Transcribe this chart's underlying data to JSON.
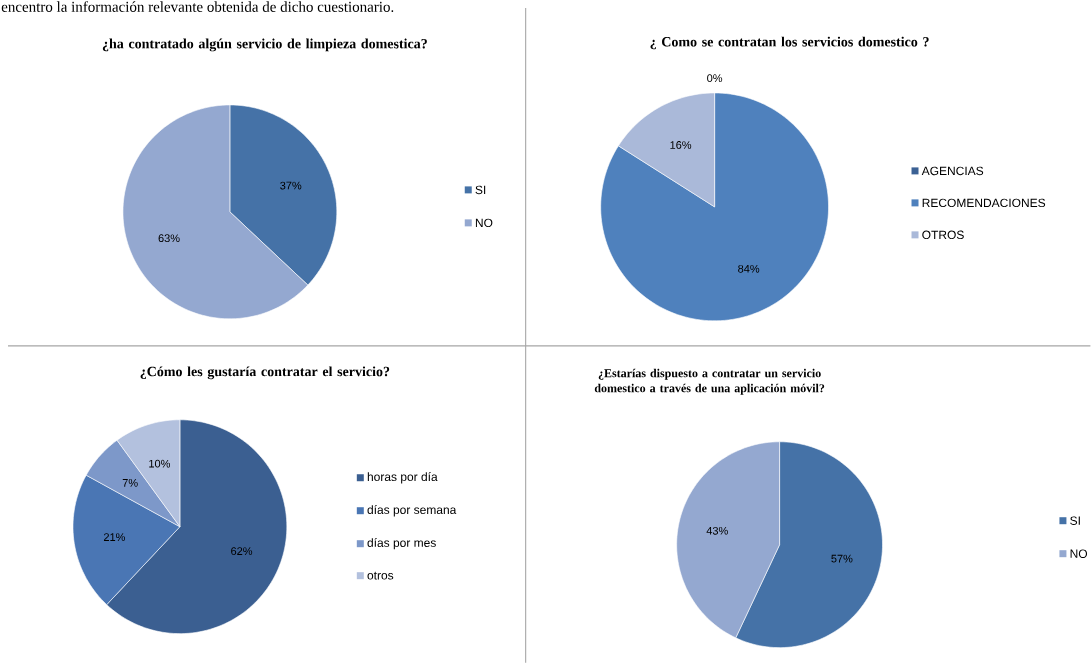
{
  "chart_data": [
    {
      "type": "pie",
      "title": "¿ha contratado algún servicio de limpieza domestica?",
      "annotations": [
        "encentro la información  relevante obtenida de dicho cuestionario."
      ],
      "categories": [
        "SI",
        "NO"
      ],
      "values": [
        37,
        63
      ],
      "value_labels": [
        "37%",
        "63%"
      ],
      "colors": [
        "#4572a7",
        "#94a8d0"
      ],
      "legend": "right"
    },
    {
      "type": "pie",
      "title": "¿ Como se contratan los servicios domestico ?",
      "categories": [
        "AGENCIAS",
        "RECOMENDACIONES",
        "OTROS"
      ],
      "values": [
        0,
        84,
        16
      ],
      "value_labels": [
        "0%",
        "84%",
        "16%"
      ],
      "colors": [
        "#3b6194",
        "#4f81bd",
        "#aab9d9"
      ],
      "legend": "right"
    },
    {
      "type": "pie",
      "title": "¿Cómo les gustaría contratar el servicio?",
      "categories": [
        "horas por día",
        "días por semana",
        "días por mes",
        "otros"
      ],
      "values": [
        62,
        21,
        7,
        10
      ],
      "value_labels": [
        "62%",
        "21%",
        "7%",
        "10%"
      ],
      "colors": [
        "#3b5f91",
        "#4a76b4",
        "#7d98c9",
        "#b3c1de"
      ],
      "legend": "right"
    },
    {
      "type": "pie",
      "title": "¿Estarías dispuesto a contratar un servicio domestico a través de una aplicación móvil?",
      "categories": [
        "SI",
        "NO"
      ],
      "values": [
        57,
        43
      ],
      "value_labels": [
        "57%",
        "43%"
      ],
      "colors": [
        "#4572a7",
        "#94a8d0"
      ],
      "legend": "right"
    }
  ]
}
